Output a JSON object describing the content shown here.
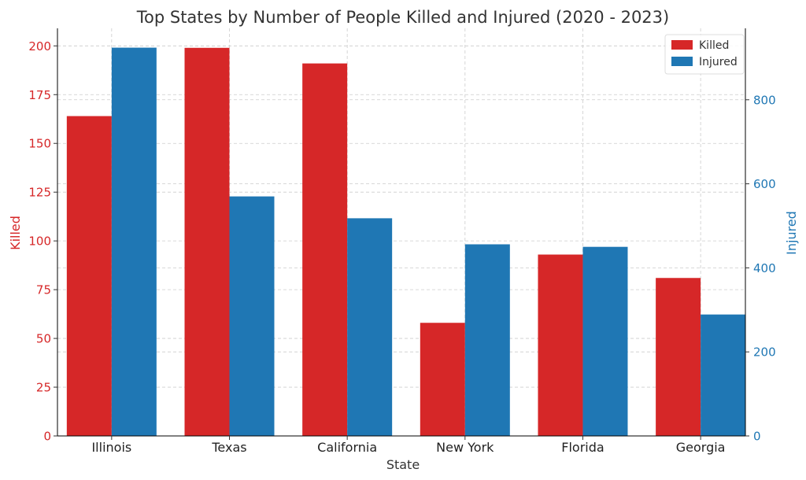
{
  "chart_data": {
    "type": "bar",
    "title": "Top States by Number of People Killed and Injured (2020 - 2023)",
    "xlabel": "State",
    "categories": [
      "Illinois",
      "Texas",
      "California",
      "New York",
      "Florida",
      "Georgia"
    ],
    "series": [
      {
        "name": "Killed",
        "axis": "left",
        "color": "#d62728",
        "values": [
          164,
          199,
          191,
          58,
          93,
          81
        ]
      },
      {
        "name": "Injured",
        "axis": "right",
        "color": "#1f77b4",
        "values": [
          924,
          570,
          518,
          456,
          450,
          289
        ]
      }
    ],
    "left_axis": {
      "label": "Killed",
      "color": "#d62728",
      "ylim": [
        0,
        209
      ],
      "ticks": [
        0,
        25,
        50,
        75,
        100,
        125,
        150,
        175,
        200
      ]
    },
    "right_axis": {
      "label": "Injured",
      "color": "#1f77b4",
      "ylim": [
        0,
        970
      ],
      "ticks": [
        0,
        200,
        400,
        600,
        800
      ]
    },
    "grid": true,
    "legend_position": "top-right"
  }
}
